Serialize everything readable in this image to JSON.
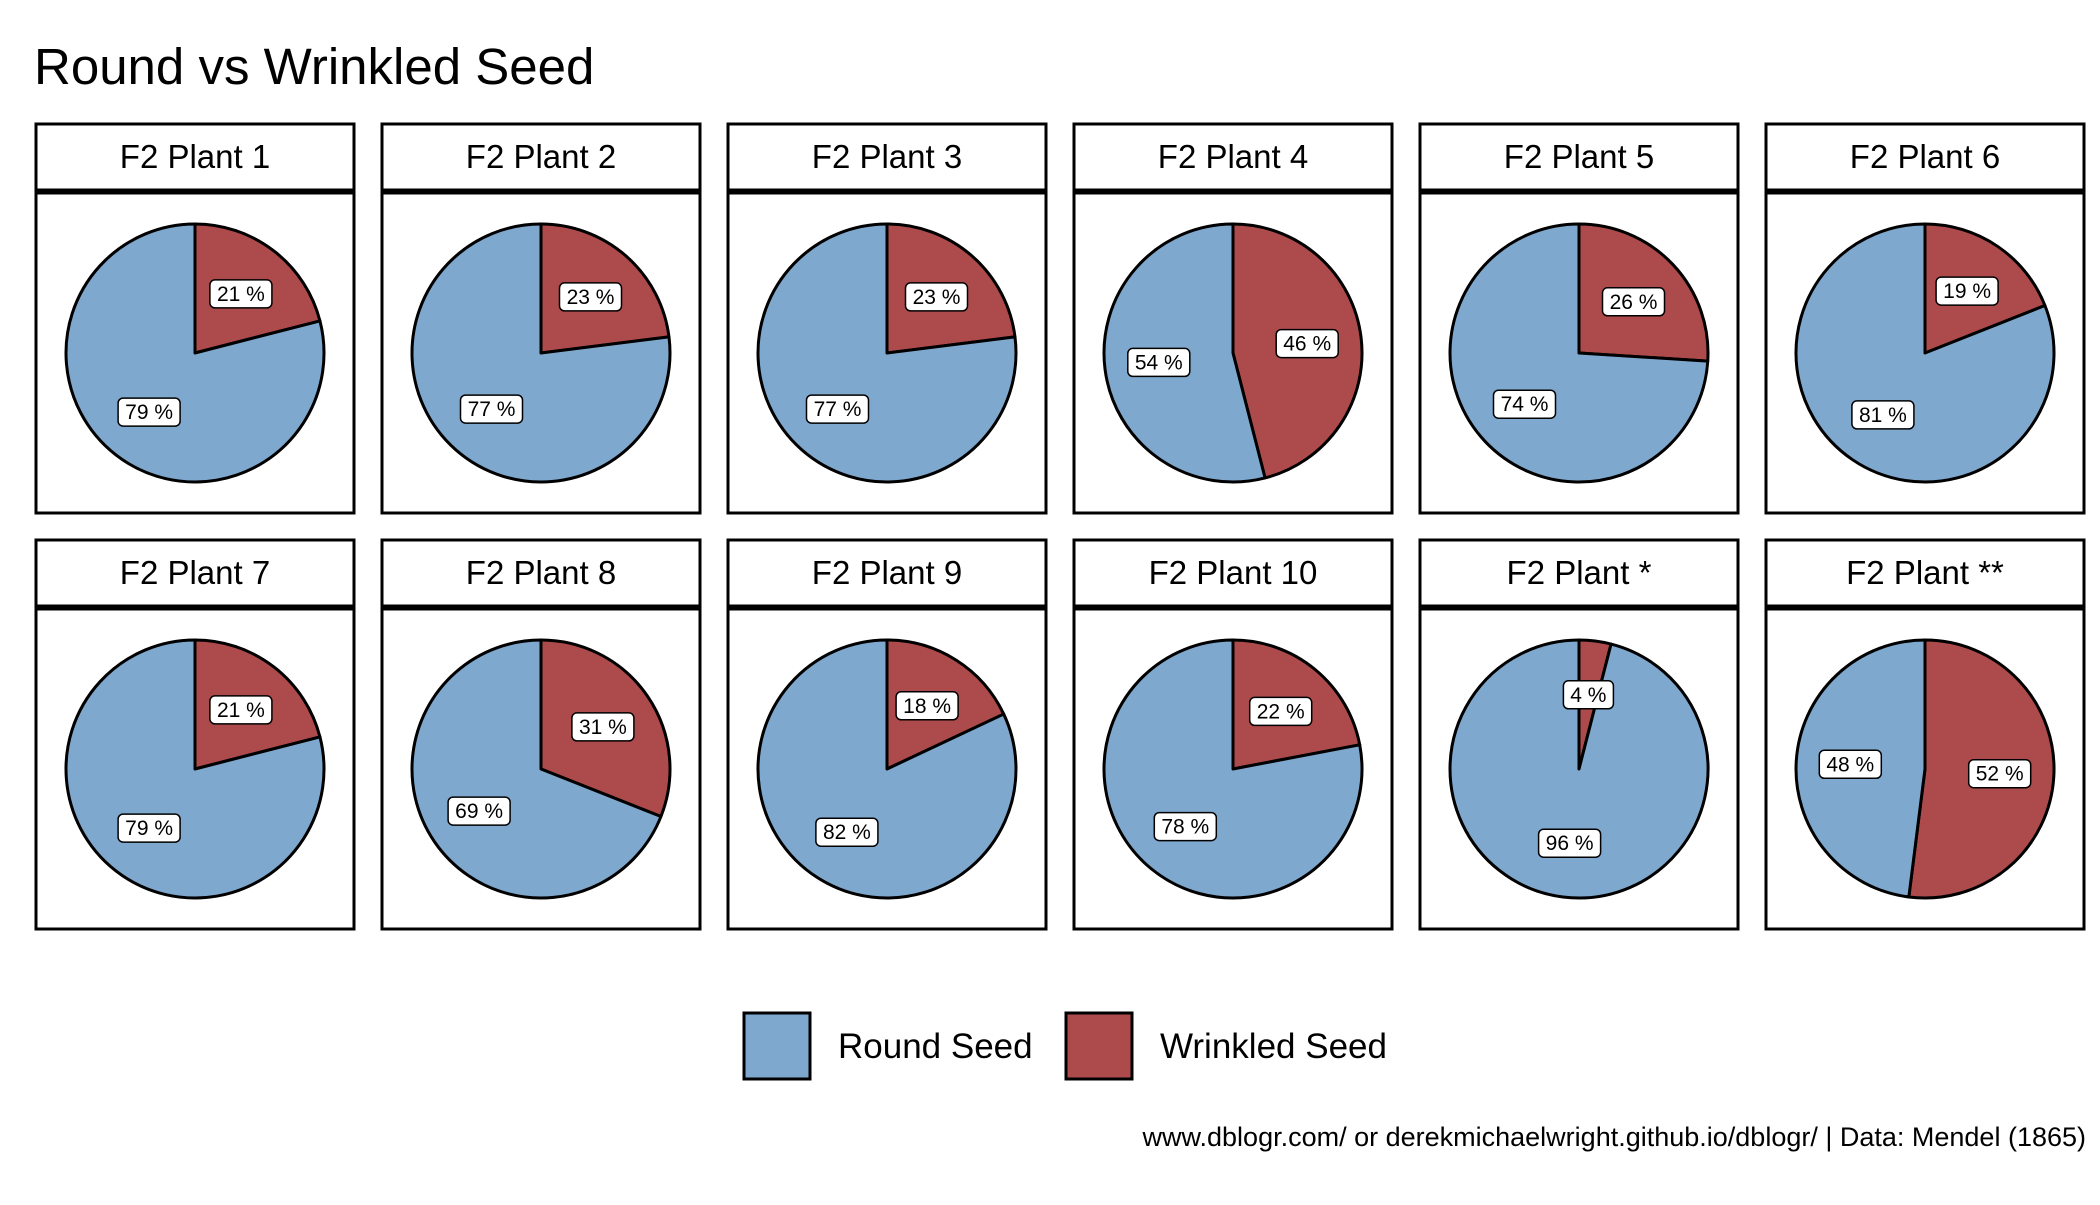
{
  "colors": {
    "round": "#7FA8CE",
    "wrinkled": "#AD4B4C",
    "stroke": "#000000",
    "background": "#ffffff"
  },
  "chart_data": {
    "type": "pie",
    "title": "Round vs Wrinkled Seed",
    "caption": "www.dblogr.com/ or derekmichaelwright.github.io/dblogr/ | Data: Mendel (1865)",
    "legend": {
      "placement": "bottom",
      "entries": [
        {
          "key": "round",
          "label": "Round Seed"
        },
        {
          "key": "wrinkled",
          "label": "Wrinkled Seed"
        }
      ]
    },
    "units": "%",
    "panels": [
      {
        "name": "F2 Plant 1",
        "round": 79,
        "wrinkled": 21
      },
      {
        "name": "F2 Plant 2",
        "round": 77,
        "wrinkled": 23
      },
      {
        "name": "F2 Plant 3",
        "round": 77,
        "wrinkled": 23
      },
      {
        "name": "F2 Plant 4",
        "round": 54,
        "wrinkled": 46
      },
      {
        "name": "F2 Plant 5",
        "round": 74,
        "wrinkled": 26
      },
      {
        "name": "F2 Plant 6",
        "round": 81,
        "wrinkled": 19
      },
      {
        "name": "F2 Plant 7",
        "round": 79,
        "wrinkled": 21
      },
      {
        "name": "F2 Plant 8",
        "round": 69,
        "wrinkled": 31
      },
      {
        "name": "F2 Plant 9",
        "round": 82,
        "wrinkled": 18
      },
      {
        "name": "F2 Plant 10",
        "round": 78,
        "wrinkled": 22
      },
      {
        "name": "F2 Plant *",
        "round": 96,
        "wrinkled": 4
      },
      {
        "name": "F2 Plant **",
        "round": 48,
        "wrinkled": 52
      }
    ]
  }
}
